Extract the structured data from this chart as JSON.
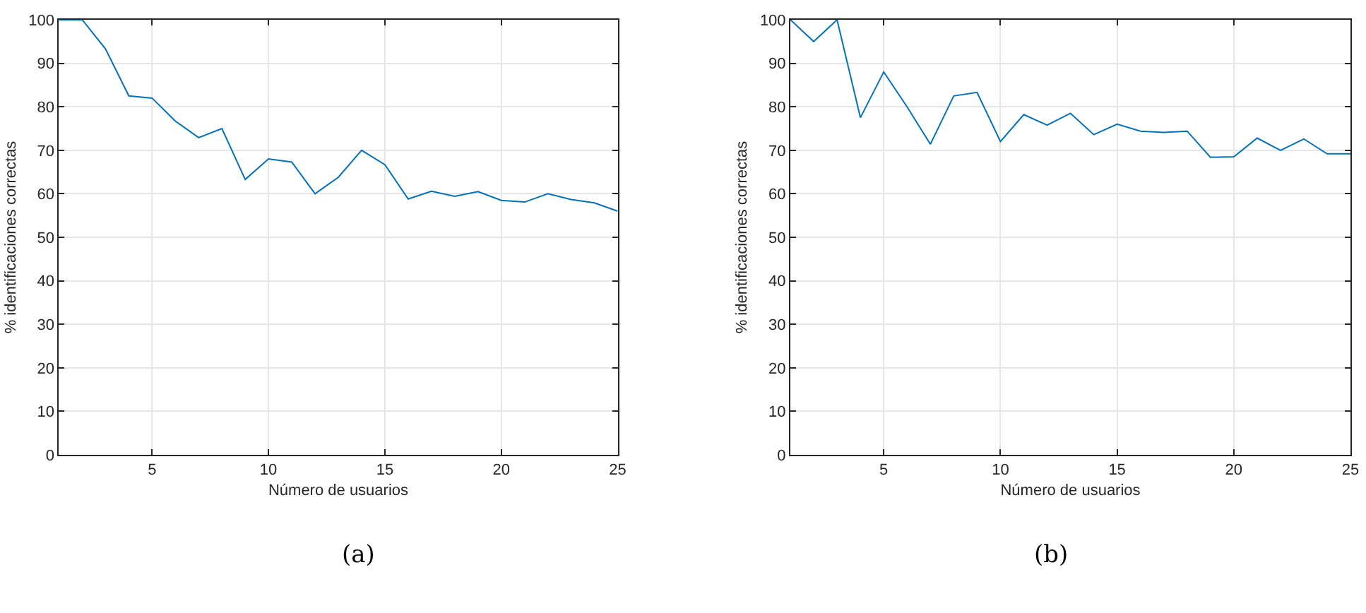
{
  "chart_data": [
    {
      "type": "line",
      "xlabel": "Número de usuarios",
      "ylabel": "% identificaciones correctas",
      "annotations": [
        "(a)"
      ],
      "x": [
        1,
        2,
        3,
        4,
        5,
        6,
        7,
        8,
        9,
        10,
        11,
        12,
        13,
        14,
        15,
        16,
        17,
        18,
        19,
        20,
        21,
        22,
        23,
        24,
        25
      ],
      "series": [
        {
          "color": "#0072bd",
          "values": [
            100,
            100,
            93.3,
            82.5,
            82,
            76.7,
            72.9,
            75,
            63.3,
            68,
            67.3,
            60,
            63.8,
            70,
            66.7,
            58.8,
            60.6,
            59.4,
            60.5,
            58.5,
            58.1,
            60,
            58.7,
            57.9,
            56
          ]
        }
      ],
      "xlim": [
        1,
        25
      ],
      "xticks": [
        5,
        10,
        15,
        20,
        25
      ],
      "ylim": [
        0,
        100
      ],
      "yticks": [
        0,
        10,
        20,
        30,
        40,
        50,
        60,
        70,
        80,
        90,
        100
      ],
      "grid": true,
      "marker": "none",
      "line_style": "solid"
    },
    {
      "type": "line",
      "xlabel": "Número de usuarios",
      "ylabel": "% identificaciones correctas",
      "annotations": [
        "(b)"
      ],
      "x": [
        1,
        2,
        3,
        4,
        5,
        6,
        7,
        8,
        9,
        10,
        11,
        12,
        13,
        14,
        15,
        16,
        17,
        18,
        19,
        20,
        21,
        22,
        23,
        24,
        25
      ],
      "series": [
        {
          "color": "#0072bd",
          "values": [
            100,
            95,
            100,
            77.5,
            88,
            80,
            71.4,
            82.5,
            83.3,
            72,
            78.2,
            75.8,
            78.5,
            73.6,
            76,
            74.4,
            74.1,
            74.4,
            68.4,
            68.5,
            72.8,
            70,
            72.6,
            69.2,
            69.2
          ]
        }
      ],
      "xlim": [
        1,
        25
      ],
      "xticks": [
        5,
        10,
        15,
        20,
        25
      ],
      "ylim": [
        0,
        100
      ],
      "yticks": [
        0,
        10,
        20,
        30,
        40,
        50,
        60,
        70,
        80,
        90,
        100
      ],
      "grid": true,
      "marker": "none",
      "line_style": "solid"
    }
  ]
}
